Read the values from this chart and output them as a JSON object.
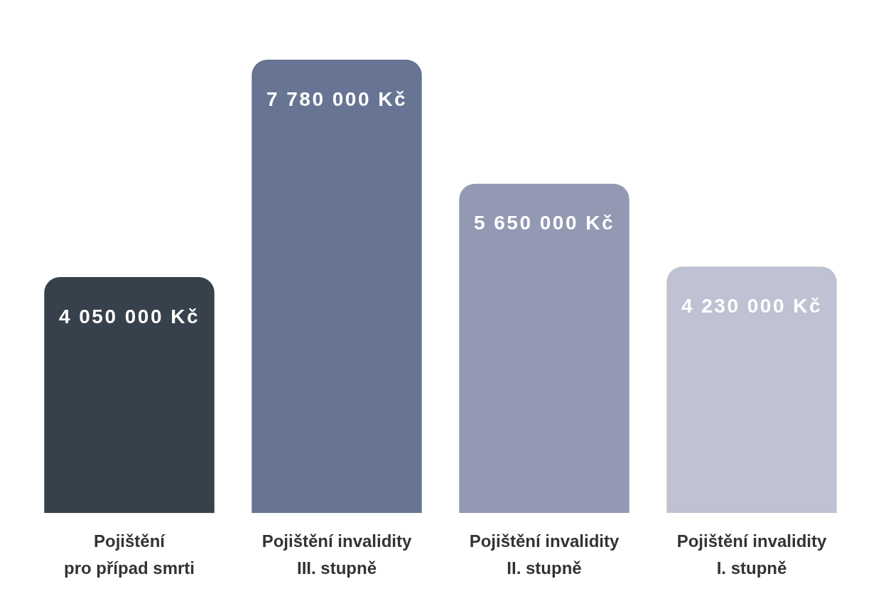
{
  "chart_data": {
    "type": "bar",
    "categories": [
      "Pojištění\npro případ smrti",
      "Pojištění invalidity\nIII. stupně",
      "Pojištění invalidity\nII. stupně",
      "Pojištění invalidity\nI. stupně"
    ],
    "values": [
      4050000,
      7780000,
      5650000,
      4230000
    ],
    "colors": [
      "#37414b",
      "#677493",
      "#9499b3",
      "#bfc2d2"
    ],
    "value_labels": [
      "4 050 000 Kč",
      "7 780 000 Kč",
      "5 650 000 Kč",
      "4 230 000 Kč"
    ],
    "tick_labels": "x"
  }
}
